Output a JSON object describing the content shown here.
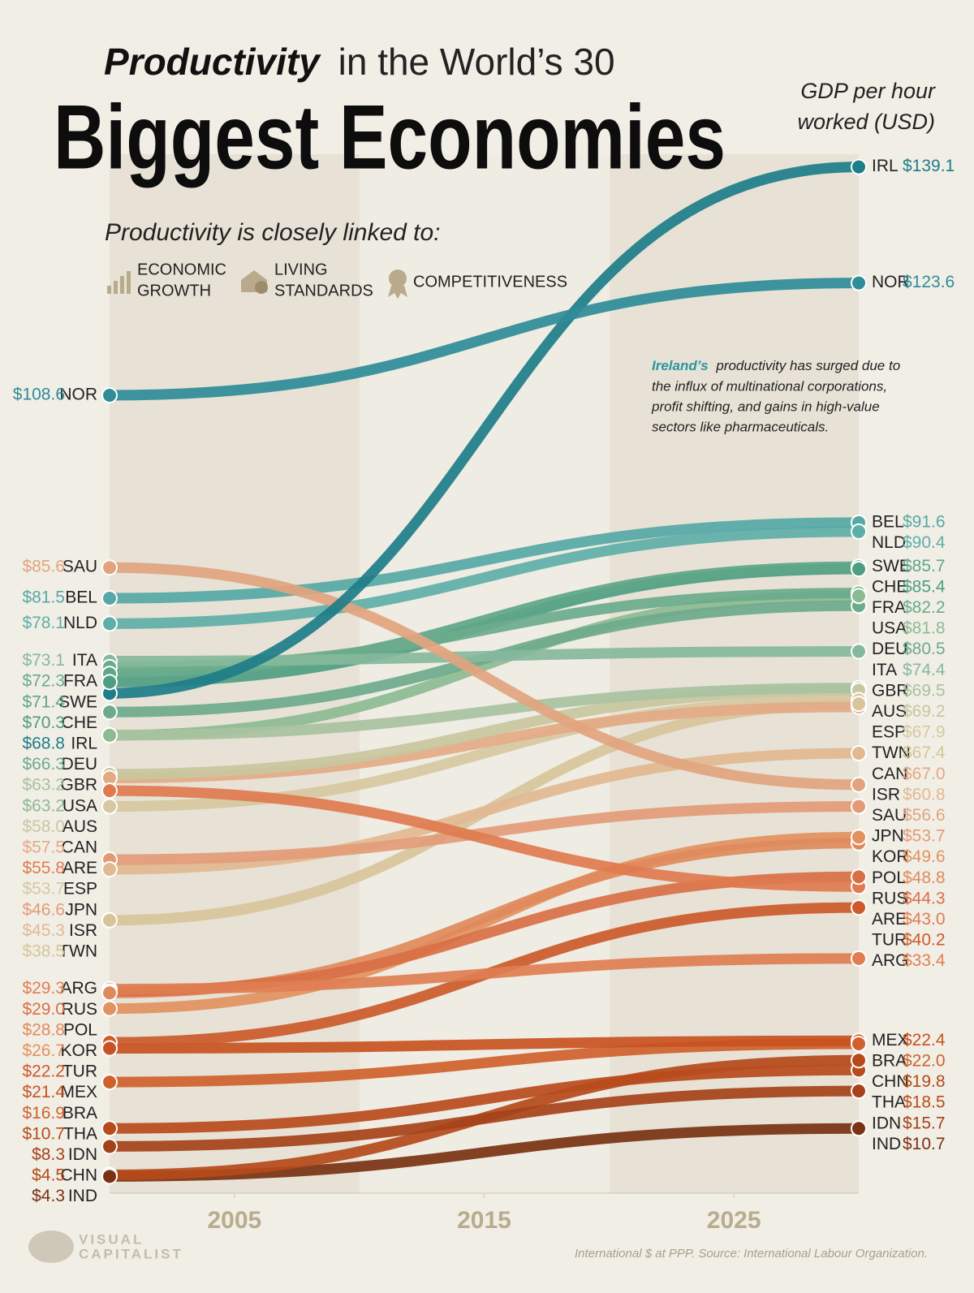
{
  "chart_data": {
    "type": "slope",
    "title_lead": "Productivity",
    "title_rest": "in the World’s 30",
    "title": "Biggest Economies",
    "subtitle": "Productivity is closely linked to:",
    "themes": [
      [
        "ECONOMIC",
        "GROWTH"
      ],
      [
        "LIVING",
        "STANDARDS"
      ],
      [
        "COMPETITIVENESS"
      ]
    ],
    "ylabel": [
      "GDP per hour",
      "worked (USD)"
    ],
    "annotation": {
      "highlight": "Ireland’s",
      "lines": [
        "productivity has surged due to",
        "the influx of multinational corporations,",
        "profit shifting, and gains in high-value",
        "sectors like pharmaceuticals."
      ]
    },
    "source": "International $ at PPP. Source: International Labour Organization.",
    "brand": [
      "VISUAL",
      "CAPITALIST"
    ],
    "x": [
      2000,
      2030
    ],
    "xlim": [
      2000,
      2030
    ],
    "xticks": [
      2005,
      2015,
      2025
    ],
    "ylim": [
      0,
      150
    ],
    "series": [
      {
        "name": "NOR",
        "color": "#2f8c98",
        "values": [
          108.6,
          123.6
        ],
        "value_labels": [
          "$108.6",
          "$123.6"
        ]
      },
      {
        "name": "IRL",
        "color": "#1d7d89",
        "values": [
          68.8,
          139.1
        ],
        "value_labels": [
          "$68.8",
          "$139.1"
        ]
      },
      {
        "name": "SAU",
        "color": "#e2a47f",
        "values": [
          85.6,
          56.6
        ],
        "value_labels": [
          "$85.6",
          "$56.6"
        ]
      },
      {
        "name": "BEL",
        "color": "#56a8a6",
        "values": [
          81.5,
          91.6
        ],
        "value_labels": [
          "$81.5",
          "$91.6"
        ]
      },
      {
        "name": "NLD",
        "color": "#5eafa8",
        "values": [
          78.1,
          90.4
        ],
        "value_labels": [
          "$78.1",
          "$90.4"
        ]
      },
      {
        "name": "ITA",
        "color": "#86b99c",
        "values": [
          73.1,
          74.4
        ],
        "value_labels": [
          "$73.1",
          "$74.4"
        ]
      },
      {
        "name": "FRA",
        "color": "#6aab8b",
        "values": [
          72.3,
          82.2
        ],
        "value_labels": [
          "$72.3",
          "$82.2"
        ]
      },
      {
        "name": "SWE",
        "color": "#5ea688",
        "values": [
          71.4,
          85.7
        ],
        "value_labels": [
          "$71.4",
          "$85.7"
        ]
      },
      {
        "name": "CHE",
        "color": "#4f9d82",
        "values": [
          70.3,
          85.4
        ],
        "value_labels": [
          "$70.3",
          "$85.4"
        ]
      },
      {
        "name": "DEU",
        "color": "#6eaa8c",
        "values": [
          66.3,
          80.5
        ],
        "value_labels": [
          "$66.3",
          "$80.5"
        ]
      },
      {
        "name": "GBR",
        "color": "#a8c29f",
        "values": [
          63.2,
          69.5
        ],
        "value_labels": [
          "$63.2",
          "$69.5"
        ]
      },
      {
        "name": "USA",
        "color": "#8cbb93",
        "values": [
          63.2,
          81.8
        ],
        "value_labels": [
          "$63.2",
          "$81.8"
        ]
      },
      {
        "name": "AUS",
        "color": "#c9c7a0",
        "values": [
          58.0,
          69.2
        ],
        "value_labels": [
          "$58.0",
          "$69.2"
        ]
      },
      {
        "name": "CAN",
        "color": "#e3aa86",
        "values": [
          57.5,
          67.0
        ],
        "value_labels": [
          "$57.5",
          "$67.0"
        ]
      },
      {
        "name": "ARE",
        "color": "#e07b4f",
        "values": [
          55.8,
          43.0
        ],
        "value_labels": [
          "$55.8",
          "$43.0"
        ]
      },
      {
        "name": "ESP",
        "color": "#d6c8a0",
        "values": [
          53.7,
          67.9
        ],
        "value_labels": [
          "$53.7",
          "$67.9"
        ]
      },
      {
        "name": "JPN",
        "color": "#e39b77",
        "values": [
          46.6,
          53.7
        ],
        "value_labels": [
          "$46.6",
          "$53.7"
        ]
      },
      {
        "name": "ISR",
        "color": "#e2b991",
        "values": [
          45.3,
          60.8
        ],
        "value_labels": [
          "$45.3",
          "$60.8"
        ]
      },
      {
        "name": "TWN",
        "color": "#d8c49a",
        "values": [
          38.5,
          67.4
        ],
        "value_labels": [
          "$38.5",
          "$67.4"
        ]
      },
      {
        "name": "ARG",
        "color": "#e07e52",
        "values": [
          29.3,
          33.4
        ],
        "value_labels": [
          "$29.3",
          "$33.4"
        ]
      },
      {
        "name": "RUS",
        "color": "#d96f45",
        "values": [
          29.0,
          44.3
        ],
        "value_labels": [
          "$29.0",
          "$44.3"
        ]
      },
      {
        "name": "POL",
        "color": "#e08a5c",
        "values": [
          28.8,
          48.8
        ],
        "value_labels": [
          "$28.8",
          "$48.8"
        ]
      },
      {
        "name": "KOR",
        "color": "#e3915f",
        "values": [
          26.7,
          49.6
        ],
        "value_labels": [
          "$26.7",
          "$49.6"
        ]
      },
      {
        "name": "TUR",
        "color": "#cc5a2a",
        "values": [
          22.2,
          40.2
        ],
        "value_labels": [
          "$22.2",
          "$40.2"
        ]
      },
      {
        "name": "MEX",
        "color": "#c85221",
        "values": [
          21.4,
          22.4
        ],
        "value_labels": [
          "$21.4",
          "$22.4"
        ]
      },
      {
        "name": "BRA",
        "color": "#d0612c",
        "values": [
          16.9,
          22.0
        ],
        "value_labels": [
          "$16.9",
          "$22.0"
        ]
      },
      {
        "name": "THA",
        "color": "#b84b1c",
        "values": [
          10.7,
          18.5
        ],
        "value_labels": [
          "$10.7",
          "$18.5"
        ]
      },
      {
        "name": "IDN",
        "color": "#a6421a",
        "values": [
          8.3,
          15.7
        ],
        "value_labels": [
          "$8.3",
          "$15.7"
        ]
      },
      {
        "name": "CHN",
        "color": "#b54a1a",
        "values": [
          4.5,
          19.8
        ],
        "value_labels": [
          "$4.5",
          "$19.8"
        ]
      },
      {
        "name": "IND",
        "color": "#7a3212",
        "values": [
          4.3,
          10.7
        ],
        "value_labels": [
          "$4.3",
          "$10.7"
        ]
      }
    ]
  }
}
